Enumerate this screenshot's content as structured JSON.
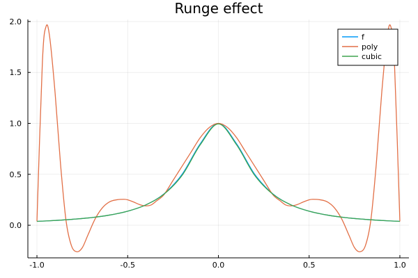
{
  "chart_data": {
    "type": "line",
    "title": "Runge effect",
    "xlabel": "",
    "ylabel": "",
    "xlim": [
      -1.05,
      1.05
    ],
    "ylim": [
      -0.32,
      2.02
    ],
    "xticks": [
      -1.0,
      -0.5,
      0.0,
      0.5,
      1.0
    ],
    "xtick_labels": [
      "-1.0",
      "-0.5",
      "0.0",
      "0.5",
      "1.0"
    ],
    "yticks": [
      0.0,
      0.5,
      1.0,
      1.5,
      2.0
    ],
    "ytick_labels": [
      "0.0",
      "0.5",
      "1.0",
      "1.5",
      "2.0"
    ],
    "grid": true,
    "legend_position": "top-right",
    "series": [
      {
        "name": "f",
        "color": "#009af9",
        "x": [
          -1.0,
          -0.9,
          -0.8,
          -0.7,
          -0.6,
          -0.5,
          -0.4,
          -0.3,
          -0.2,
          -0.1,
          0.0,
          0.1,
          0.2,
          0.3,
          0.4,
          0.5,
          0.6,
          0.7,
          0.8,
          0.9,
          1.0
        ],
        "y": [
          0.038,
          0.047,
          0.059,
          0.075,
          0.1,
          0.138,
          0.2,
          0.308,
          0.5,
          0.8,
          1.0,
          0.8,
          0.5,
          0.308,
          0.2,
          0.138,
          0.1,
          0.075,
          0.059,
          0.047,
          0.038
        ]
      },
      {
        "name": "poly",
        "color": "#e26f46",
        "x": [
          -1.0,
          -0.97,
          -0.95,
          -0.93,
          -0.9,
          -0.87,
          -0.84,
          -0.81,
          -0.78,
          -0.75,
          -0.72,
          -0.68,
          -0.64,
          -0.6,
          -0.56,
          -0.52,
          -0.5,
          -0.47,
          -0.43,
          -0.4,
          -0.37,
          -0.34,
          -0.3,
          -0.25,
          -0.2,
          -0.15,
          -0.1,
          -0.05,
          0.0,
          0.05,
          0.1,
          0.15,
          0.2,
          0.25,
          0.3,
          0.34,
          0.37,
          0.4,
          0.43,
          0.47,
          0.5,
          0.52,
          0.56,
          0.6,
          0.64,
          0.68,
          0.72,
          0.75,
          0.78,
          0.81,
          0.84,
          0.87,
          0.9,
          0.93,
          0.95,
          0.97,
          1.0
        ],
        "y": [
          0.038,
          1.6,
          1.95,
          1.85,
          1.3,
          0.6,
          0.05,
          -0.2,
          -0.26,
          -0.22,
          -0.1,
          0.06,
          0.17,
          0.23,
          0.25,
          0.255,
          0.25,
          0.23,
          0.2,
          0.19,
          0.2,
          0.24,
          0.3,
          0.44,
          0.58,
          0.72,
          0.86,
          0.96,
          1.0,
          0.96,
          0.86,
          0.72,
          0.58,
          0.44,
          0.3,
          0.24,
          0.2,
          0.19,
          0.2,
          0.23,
          0.25,
          0.255,
          0.25,
          0.23,
          0.17,
          0.06,
          -0.1,
          -0.22,
          -0.26,
          -0.2,
          0.05,
          0.6,
          1.3,
          1.85,
          1.95,
          1.6,
          0.038
        ]
      },
      {
        "name": "cubic",
        "color": "#3ea44e",
        "x": [
          -1.0,
          -0.9,
          -0.8,
          -0.7,
          -0.6,
          -0.5,
          -0.4,
          -0.3,
          -0.2,
          -0.1,
          0.0,
          0.1,
          0.2,
          0.3,
          0.4,
          0.5,
          0.6,
          0.7,
          0.8,
          0.9,
          1.0
        ],
        "y": [
          0.038,
          0.047,
          0.059,
          0.075,
          0.1,
          0.138,
          0.2,
          0.305,
          0.49,
          0.79,
          0.995,
          0.79,
          0.49,
          0.305,
          0.2,
          0.138,
          0.1,
          0.075,
          0.059,
          0.047,
          0.038
        ]
      }
    ]
  }
}
